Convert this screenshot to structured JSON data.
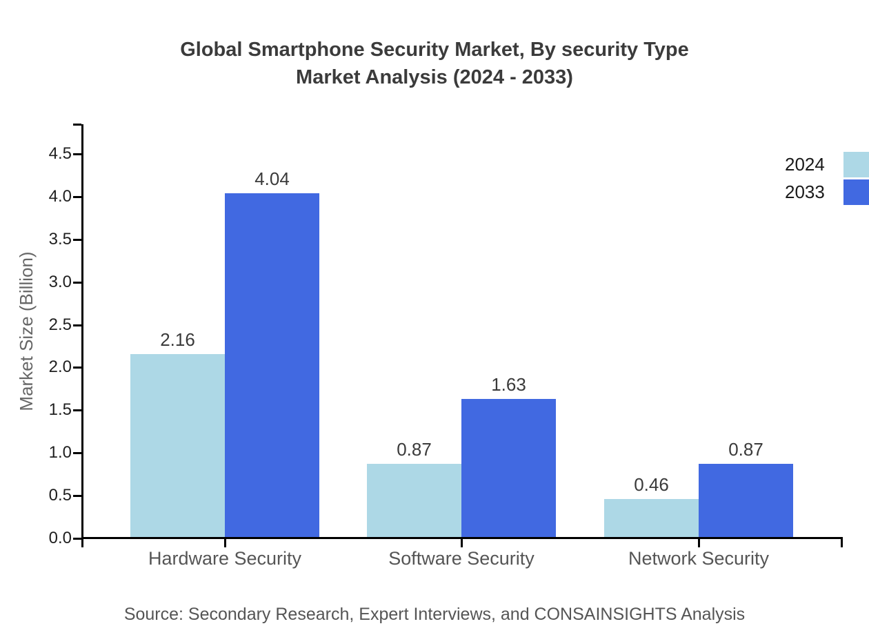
{
  "chart_data": {
    "type": "bar",
    "title": "Global Smartphone Security Market, By security Type Market Analysis (2024 - 2033)",
    "title_lines": [
      "Global Smartphone Security Market, By security Type",
      "Market Analysis (2024 - 2033)"
    ],
    "ylabel": "Market Size (Billion)",
    "xlabel": "",
    "categories": [
      "Hardware Security",
      "Software Security",
      "Network Security"
    ],
    "series": [
      {
        "name": "2024",
        "color": "#ADD8E6",
        "values": [
          2.16,
          0.87,
          0.46
        ]
      },
      {
        "name": "2033",
        "color": "#4169E1",
        "values": [
          4.04,
          1.63,
          0.87
        ]
      }
    ],
    "yticks": [
      0.0,
      0.5,
      1.0,
      1.5,
      2.0,
      2.5,
      3.0,
      3.5,
      4.0,
      4.5
    ],
    "ylim": [
      0,
      4.85
    ],
    "grid": false,
    "legend_position": "top-right",
    "axis_color": "#000000",
    "source": "Source: Secondary Research, Expert Interviews, and CONSAINSIGHTS Analysis"
  }
}
